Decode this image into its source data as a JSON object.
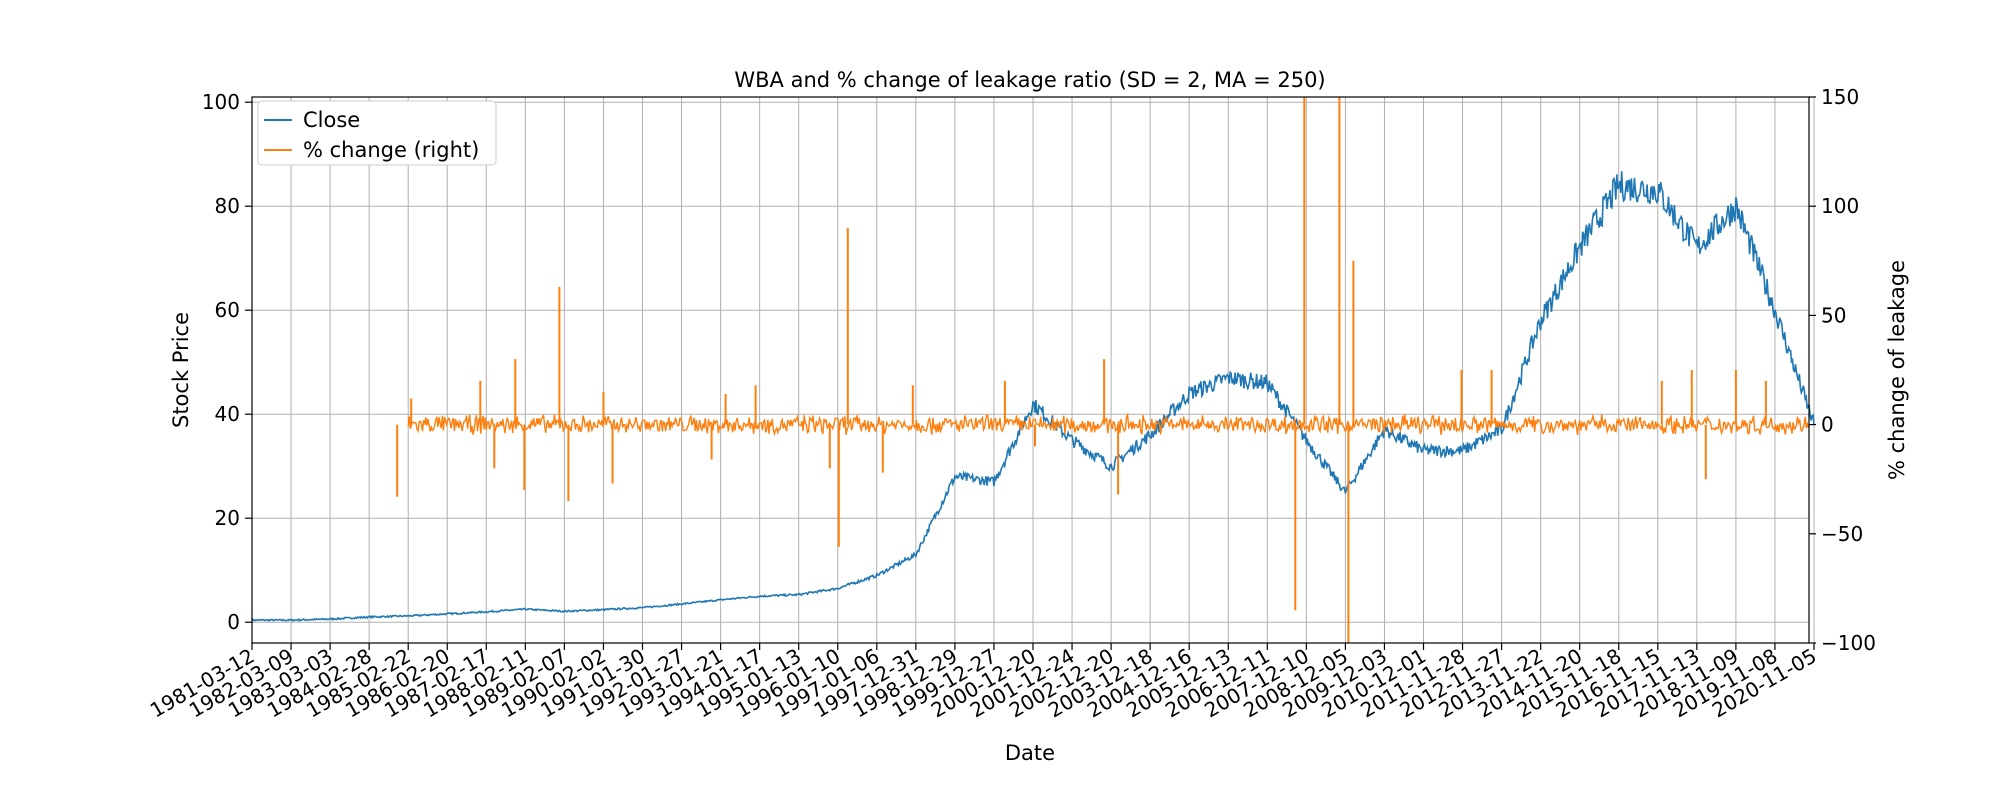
{
  "chart_data": {
    "type": "line",
    "title": "WBA and % change of leakage ratio (SD = 2, MA = 250)",
    "xlabel": "Date",
    "ylabel": "Stock Price",
    "y2label": "% change of leakage",
    "grid": true,
    "legend_position": "top-left",
    "ylim": [
      -4,
      101
    ],
    "y2lim": [
      -100,
      150
    ],
    "yticks": [
      "0",
      "20",
      "40",
      "60",
      "80",
      "100"
    ],
    "y2ticks": [
      "−100",
      "−50",
      "0",
      "50",
      "100",
      "150"
    ],
    "xticks": [
      "1981-03-12",
      "1982-03-09",
      "1983-03-03",
      "1984-02-28",
      "1985-02-22",
      "1986-02-20",
      "1987-02-17",
      "1988-02-11",
      "1989-02-07",
      "1990-02-02",
      "1991-01-30",
      "1992-01-27",
      "1993-01-21",
      "1994-01-17",
      "1995-01-13",
      "1996-01-10",
      "1997-01-06",
      "1997-12-31",
      "1998-12-29",
      "1999-12-27",
      "2000-12-20",
      "2001-12-24",
      "2002-12-20",
      "2003-12-18",
      "2004-12-16",
      "2005-12-13",
      "2006-12-11",
      "2007-12-10",
      "2008-12-05",
      "2009-12-03",
      "2010-12-01",
      "2011-11-28",
      "2012-11-27",
      "2013-11-22",
      "2014-11-20",
      "2015-11-18",
      "2016-11-15",
      "2017-11-13",
      "2018-11-09",
      "2019-11-08",
      "2020-11-05"
    ],
    "series": [
      {
        "name": "Close",
        "axis": "left",
        "color": "#1f77b4",
        "points": [
          [
            "1981-03-12",
            0.4
          ],
          [
            "1982-03-09",
            0.4
          ],
          [
            "1983-03-03",
            0.6
          ],
          [
            "1984-02-28",
            1.0
          ],
          [
            "1985-02-22",
            1.2
          ],
          [
            "1986-02-20",
            1.6
          ],
          [
            "1987-02-17",
            2.0
          ],
          [
            "1988-02-11",
            2.5
          ],
          [
            "1989-02-07",
            2.1
          ],
          [
            "1990-02-02",
            2.4
          ],
          [
            "1991-01-30",
            2.8
          ],
          [
            "1992-01-27",
            3.5
          ],
          [
            "1993-01-21",
            4.3
          ],
          [
            "1994-01-17",
            5.0
          ],
          [
            "1995-01-13",
            5.3
          ],
          [
            "1996-01-10",
            6.5
          ],
          [
            "1997-01-06",
            9.0
          ],
          [
            "1997-12-31",
            13.0
          ],
          [
            "1998-12-29",
            28.0
          ],
          [
            "1999-12-27",
            27.0
          ],
          [
            "2000-12-20",
            42.0
          ],
          [
            "2001-12-24",
            35.0
          ],
          [
            "2002-12-20",
            30.0
          ],
          [
            "2003-12-18",
            36.0
          ],
          [
            "2004-12-16",
            44.0
          ],
          [
            "2005-12-13",
            47.0
          ],
          [
            "2006-12-11",
            46.0
          ],
          [
            "2007-12-10",
            35.0
          ],
          [
            "2008-12-05",
            25.0
          ],
          [
            "2009-12-03",
            37.0
          ],
          [
            "2010-12-01",
            33.0
          ],
          [
            "2011-11-28",
            33.0
          ],
          [
            "2012-11-27",
            37.0
          ],
          [
            "2013-11-22",
            58.0
          ],
          [
            "2014-11-20",
            72.0
          ],
          [
            "2015-11-18",
            84.0
          ],
          [
            "2016-11-15",
            83.0
          ],
          [
            "2017-11-13",
            72.0
          ],
          [
            "2018-11-09",
            80.0
          ],
          [
            "2019-11-08",
            60.0
          ],
          [
            "2020-11-05",
            38.0
          ]
        ]
      },
      {
        "name": "% change (right)",
        "axis": "right",
        "color": "#ff7f0e",
        "start": "1985-02-22",
        "baseline": 0,
        "noise": 2,
        "spikes": [
          [
            "1985-02-22",
            -33
          ],
          [
            "1985-02-22",
            12
          ],
          [
            "1987-02-17",
            20
          ],
          [
            "1987-02-17",
            -20
          ],
          [
            "1988-02-11",
            -30
          ],
          [
            "1988-02-11",
            30
          ],
          [
            "1989-02-07",
            -35
          ],
          [
            "1989-02-07",
            63
          ],
          [
            "1990-02-02",
            -27
          ],
          [
            "1990-02-02",
            15
          ],
          [
            "1993-01-21",
            -16
          ],
          [
            "1993-01-21",
            14
          ],
          [
            "1994-01-17",
            18
          ],
          [
            "1996-01-10",
            90
          ],
          [
            "1996-01-10",
            -56
          ],
          [
            "1996-01-10",
            -20
          ],
          [
            "1997-01-06",
            -22
          ],
          [
            "1997-12-31",
            18
          ],
          [
            "1999-12-27",
            20
          ],
          [
            "2000-12-20",
            -10
          ],
          [
            "2002-12-20",
            30
          ],
          [
            "2002-12-20",
            -32
          ],
          [
            "2007-12-10",
            150
          ],
          [
            "2007-12-10",
            -85
          ],
          [
            "2008-12-05",
            -100
          ],
          [
            "2008-12-05",
            150
          ],
          [
            "2008-12-05",
            75
          ],
          [
            "2011-11-28",
            25
          ],
          [
            "2012-11-27",
            25
          ],
          [
            "2016-11-15",
            20
          ],
          [
            "2017-11-13",
            25
          ],
          [
            "2017-11-13",
            -25
          ],
          [
            "2018-11-09",
            25
          ],
          [
            "2019-11-08",
            20
          ]
        ]
      }
    ]
  }
}
